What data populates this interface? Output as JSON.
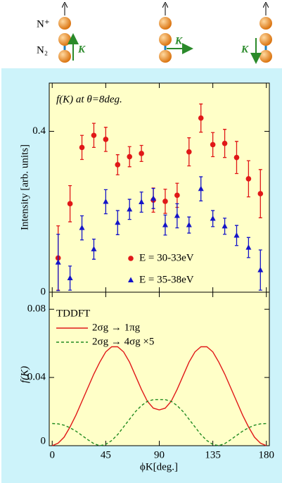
{
  "diagram": {
    "ion_label": "N⁺",
    "molecule_label": "N₂",
    "arrow_labels": [
      "K",
      "K",
      "K"
    ]
  },
  "chart_data": [
    {
      "type": "scatter",
      "title": "f(K) at θ=8deg.",
      "y_label": "Intensity [arb. units]",
      "x": [
        5,
        15,
        25,
        35,
        45,
        55,
        65,
        75,
        85,
        95,
        105,
        115,
        125,
        135,
        145,
        155,
        165,
        175
      ],
      "series": [
        {
          "name": "E = 30-33eV",
          "color": "#e01818",
          "marker": "circle",
          "values": [
            0.085,
            0.22,
            0.36,
            0.39,
            0.38,
            0.317,
            0.337,
            0.345,
            0.229,
            0.226,
            0.241,
            0.349,
            0.433,
            0.367,
            0.37,
            0.335,
            0.282,
            0.245
          ],
          "errors": [
            0.08,
            0.045,
            0.03,
            0.03,
            0.03,
            0.025,
            0.025,
            0.02,
            0.03,
            0.03,
            0.03,
            0.035,
            0.035,
            0.03,
            0.035,
            0.04,
            0.045,
            0.06
          ]
        },
        {
          "name": "E = 35-38eV",
          "color": "#1414c8",
          "marker": "triangle",
          "values": [
            0.074,
            0.035,
            0.16,
            0.107,
            0.225,
            0.173,
            0.206,
            0.224,
            0.233,
            0.167,
            0.19,
            0.167,
            0.257,
            0.183,
            0.164,
            0.141,
            0.111,
            0.055
          ],
          "errors": [
            0.07,
            0.03,
            0.03,
            0.025,
            0.03,
            0.03,
            0.025,
            0.025,
            0.025,
            0.025,
            0.03,
            0.02,
            0.03,
            0.02,
            0.02,
            0.025,
            0.025,
            0.05
          ]
        }
      ],
      "xlim": [
        -2.5,
        182.5
      ],
      "ylim": [
        0,
        0.52
      ],
      "yticks": [
        0,
        0.4
      ]
    },
    {
      "type": "line",
      "annotation": "TDDFT",
      "y_label": "f(K)",
      "x_label": "ϕK[deg.]",
      "x": [
        0,
        5,
        10,
        15,
        20,
        25,
        30,
        35,
        40,
        45,
        50,
        55,
        60,
        65,
        70,
        75,
        80,
        85,
        90,
        95,
        100,
        105,
        110,
        115,
        120,
        125,
        130,
        135,
        140,
        145,
        150,
        155,
        160,
        165,
        170,
        175,
        180
      ],
      "series": [
        {
          "name": "2σg → 1πg",
          "color": "#e01818",
          "dash": false,
          "values": [
            0,
            0.0015,
            0.005,
            0.011,
            0.018,
            0.026,
            0.034,
            0.042,
            0.049,
            0.055,
            0.058,
            0.058,
            0.055,
            0.049,
            0.041,
            0.033,
            0.026,
            0.022,
            0.021,
            0.022,
            0.026,
            0.033,
            0.041,
            0.049,
            0.055,
            0.058,
            0.058,
            0.055,
            0.049,
            0.042,
            0.034,
            0.026,
            0.018,
            0.011,
            0.005,
            0.0015,
            0
          ]
        },
        {
          "name": "2σg → 4σg ×5",
          "color": "#208a20",
          "dash": true,
          "values": [
            0.013,
            0.0128,
            0.012,
            0.0105,
            0.0085,
            0.006,
            0.0035,
            0.0012,
            0,
            0.0008,
            0.003,
            0.0065,
            0.011,
            0.0155,
            0.02,
            0.0235,
            0.026,
            0.027,
            0.027,
            0.027,
            0.026,
            0.0235,
            0.02,
            0.0155,
            0.011,
            0.0065,
            0.003,
            0.0008,
            0,
            0.0012,
            0.0035,
            0.006,
            0.0085,
            0.0105,
            0.012,
            0.0128,
            0.013
          ]
        }
      ],
      "xlim": [
        -2.5,
        182.5
      ],
      "ylim": [
        0,
        0.09
      ],
      "xticks": [
        0,
        45,
        90,
        135,
        180
      ],
      "yticks": [
        0,
        0.04,
        0.08
      ]
    }
  ]
}
